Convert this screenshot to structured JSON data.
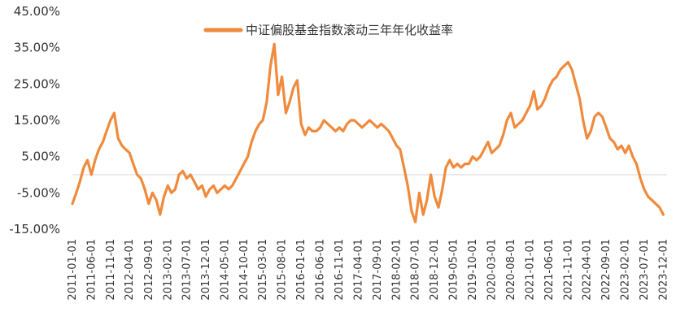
{
  "chart_data": {
    "type": "line",
    "legend_position": "top-center",
    "grid": false,
    "ylim": [
      -15,
      45
    ],
    "yticks": [
      45,
      35,
      25,
      15,
      5,
      -5,
      -15
    ],
    "ytick_labels": [
      "45.00%",
      "35.00%",
      "25.00%",
      "15.00%",
      "5.00%",
      "-5.00%",
      "-15.00%"
    ],
    "xlim": [
      "2011-01-01",
      "2023-12-31"
    ],
    "xtick_labels": [
      "2011-01-01",
      "2011-06-01",
      "2011-11-01",
      "2012-04-01",
      "2012-09-01",
      "2013-02-01",
      "2013-07-01",
      "2013-12-01",
      "2014-05-01",
      "2014-10-01",
      "2015-03-01",
      "2015-08-01",
      "2016-01-01",
      "2016-06-01",
      "2016-11-01",
      "2017-04-01",
      "2017-09-01",
      "2018-02-01",
      "2018-07-01",
      "2018-12-01",
      "2019-05-01",
      "2019-10-01",
      "2020-03-01",
      "2020-08-01",
      "2021-01-01",
      "2021-06-01",
      "2021-11-01",
      "2022-04-01",
      "2022-09-01",
      "2023-02-01",
      "2023-07-01",
      "2023-12-01"
    ],
    "series": [
      {
        "name": "中证偏股基金指数滚动三年年化收益率",
        "color": "#F08A3C",
        "points": [
          [
            "2011-01-01",
            -8
          ],
          [
            "2011-02-01",
            -5
          ],
          [
            "2011-03-01",
            -2
          ],
          [
            "2011-04-01",
            2
          ],
          [
            "2011-05-01",
            4
          ],
          [
            "2011-06-01",
            0
          ],
          [
            "2011-07-01",
            4
          ],
          [
            "2011-08-01",
            7
          ],
          [
            "2011-09-01",
            9
          ],
          [
            "2011-10-01",
            12
          ],
          [
            "2011-11-01",
            15
          ],
          [
            "2011-12-01",
            17
          ],
          [
            "2012-01-01",
            10
          ],
          [
            "2012-02-01",
            8
          ],
          [
            "2012-03-01",
            7
          ],
          [
            "2012-04-01",
            6
          ],
          [
            "2012-05-01",
            3
          ],
          [
            "2012-06-01",
            0
          ],
          [
            "2012-07-01",
            -1
          ],
          [
            "2012-08-01",
            -4
          ],
          [
            "2012-09-01",
            -8
          ],
          [
            "2012-10-01",
            -5
          ],
          [
            "2012-11-01",
            -7
          ],
          [
            "2012-12-01",
            -11
          ],
          [
            "2013-01-01",
            -6
          ],
          [
            "2013-02-01",
            -3
          ],
          [
            "2013-03-01",
            -5
          ],
          [
            "2013-04-01",
            -4
          ],
          [
            "2013-05-01",
            0
          ],
          [
            "2013-06-01",
            1
          ],
          [
            "2013-07-01",
            -1
          ],
          [
            "2013-08-01",
            0
          ],
          [
            "2013-09-01",
            -2
          ],
          [
            "2013-10-01",
            -4
          ],
          [
            "2013-11-01",
            -3
          ],
          [
            "2013-12-01",
            -6
          ],
          [
            "2014-01-01",
            -4
          ],
          [
            "2014-02-01",
            -3
          ],
          [
            "2014-03-01",
            -5
          ],
          [
            "2014-04-01",
            -4
          ],
          [
            "2014-05-01",
            -3
          ],
          [
            "2014-06-01",
            -4
          ],
          [
            "2014-07-01",
            -3
          ],
          [
            "2014-08-01",
            -1
          ],
          [
            "2014-09-01",
            1
          ],
          [
            "2014-10-01",
            3
          ],
          [
            "2014-11-01",
            5
          ],
          [
            "2014-12-01",
            9
          ],
          [
            "2015-01-01",
            12
          ],
          [
            "2015-02-01",
            14
          ],
          [
            "2015-03-01",
            15
          ],
          [
            "2015-04-01",
            20
          ],
          [
            "2015-05-01",
            30
          ],
          [
            "2015-06-01",
            36
          ],
          [
            "2015-07-01",
            22
          ],
          [
            "2015-08-01",
            27
          ],
          [
            "2015-09-01",
            17
          ],
          [
            "2015-10-01",
            20
          ],
          [
            "2015-11-01",
            24
          ],
          [
            "2015-12-01",
            26
          ],
          [
            "2016-01-01",
            14
          ],
          [
            "2016-02-01",
            11
          ],
          [
            "2016-03-01",
            13
          ],
          [
            "2016-04-01",
            12
          ],
          [
            "2016-05-01",
            12
          ],
          [
            "2016-06-01",
            13
          ],
          [
            "2016-07-01",
            15
          ],
          [
            "2016-08-01",
            14
          ],
          [
            "2016-09-01",
            13
          ],
          [
            "2016-10-01",
            12
          ],
          [
            "2016-11-01",
            13
          ],
          [
            "2016-12-01",
            12
          ],
          [
            "2017-01-01",
            14
          ],
          [
            "2017-02-01",
            15
          ],
          [
            "2017-03-01",
            15
          ],
          [
            "2017-04-01",
            14
          ],
          [
            "2017-05-01",
            13
          ],
          [
            "2017-06-01",
            14
          ],
          [
            "2017-07-01",
            15
          ],
          [
            "2017-08-01",
            14
          ],
          [
            "2017-09-01",
            13
          ],
          [
            "2017-10-01",
            14
          ],
          [
            "2017-11-01",
            13
          ],
          [
            "2017-12-01",
            12
          ],
          [
            "2018-01-01",
            10
          ],
          [
            "2018-02-01",
            8
          ],
          [
            "2018-03-01",
            7
          ],
          [
            "2018-04-01",
            2
          ],
          [
            "2018-05-01",
            -3
          ],
          [
            "2018-06-01",
            -10
          ],
          [
            "2018-07-01",
            -13
          ],
          [
            "2018-08-01",
            -5
          ],
          [
            "2018-09-01",
            -11
          ],
          [
            "2018-10-01",
            -7
          ],
          [
            "2018-11-01",
            0
          ],
          [
            "2018-12-01",
            -6
          ],
          [
            "2019-01-01",
            -9
          ],
          [
            "2019-02-01",
            -4
          ],
          [
            "2019-03-01",
            2
          ],
          [
            "2019-04-01",
            4
          ],
          [
            "2019-05-01",
            2
          ],
          [
            "2019-06-01",
            3
          ],
          [
            "2019-07-01",
            2
          ],
          [
            "2019-08-01",
            3
          ],
          [
            "2019-09-01",
            3
          ],
          [
            "2019-10-01",
            5
          ],
          [
            "2019-11-01",
            4
          ],
          [
            "2019-12-01",
            5
          ],
          [
            "2020-01-01",
            7
          ],
          [
            "2020-02-01",
            9
          ],
          [
            "2020-03-01",
            6
          ],
          [
            "2020-04-01",
            7
          ],
          [
            "2020-05-01",
            8
          ],
          [
            "2020-06-01",
            11
          ],
          [
            "2020-07-01",
            15
          ],
          [
            "2020-08-01",
            17
          ],
          [
            "2020-09-01",
            13
          ],
          [
            "2020-10-01",
            14
          ],
          [
            "2020-11-01",
            15
          ],
          [
            "2020-12-01",
            17
          ],
          [
            "2021-01-01",
            19
          ],
          [
            "2021-02-01",
            23
          ],
          [
            "2021-03-01",
            18
          ],
          [
            "2021-04-01",
            19
          ],
          [
            "2021-05-01",
            21
          ],
          [
            "2021-06-01",
            24
          ],
          [
            "2021-07-01",
            26
          ],
          [
            "2021-08-01",
            27
          ],
          [
            "2021-09-01",
            29
          ],
          [
            "2021-10-01",
            30
          ],
          [
            "2021-11-01",
            31
          ],
          [
            "2021-12-01",
            29
          ],
          [
            "2022-01-01",
            25
          ],
          [
            "2022-02-01",
            21
          ],
          [
            "2022-03-01",
            15
          ],
          [
            "2022-04-01",
            10
          ],
          [
            "2022-05-01",
            12
          ],
          [
            "2022-06-01",
            16
          ],
          [
            "2022-07-01",
            17
          ],
          [
            "2022-08-01",
            16
          ],
          [
            "2022-09-01",
            13
          ],
          [
            "2022-10-01",
            10
          ],
          [
            "2022-11-01",
            9
          ],
          [
            "2022-12-01",
            7
          ],
          [
            "2023-01-01",
            8
          ],
          [
            "2023-02-01",
            6
          ],
          [
            "2023-03-01",
            8
          ],
          [
            "2023-04-01",
            5
          ],
          [
            "2023-05-01",
            3
          ],
          [
            "2023-06-01",
            -1
          ],
          [
            "2023-07-01",
            -4
          ],
          [
            "2023-08-01",
            -6
          ],
          [
            "2023-09-01",
            -7
          ],
          [
            "2023-10-01",
            -8
          ],
          [
            "2023-11-01",
            -9
          ],
          [
            "2023-12-01",
            -11
          ]
        ]
      }
    ]
  }
}
